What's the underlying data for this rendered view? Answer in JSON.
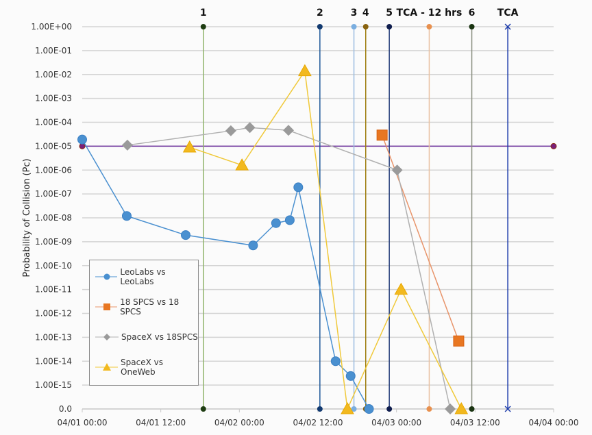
{
  "chart_data": {
    "type": "scatter",
    "title": "",
    "xlabel": "",
    "ylabel": "Probability of Collision (Pc)",
    "x_unit": "hours since 04/01 00:00",
    "xlim": [
      0,
      72
    ],
    "x_ticks": [
      {
        "t": 0,
        "label": "04/01 00:00"
      },
      {
        "t": 12,
        "label": "04/01 12:00"
      },
      {
        "t": 24,
        "label": "04/02 00:00"
      },
      {
        "t": 36,
        "label": "04/02 12:00"
      },
      {
        "t": 48,
        "label": "04/03 00:00"
      },
      {
        "t": 60,
        "label": "04/03 12:00"
      },
      {
        "t": 72,
        "label": "04/04 00:00"
      }
    ],
    "y_scale": "log",
    "ylim": [
      1e-16,
      1
    ],
    "y_ticks": [
      "0.0",
      "1.00E-15",
      "1.00E-14",
      "1.00E-13",
      "1.00E-12",
      "1.00E-11",
      "1.00E-10",
      "1.00E-09",
      "1.00E-08",
      "1.00E-07",
      "1.00E-06",
      "1.00E-05",
      "1.00E-04",
      "1.00E-03",
      "1.00E-02",
      "1.00E-01",
      "1.00E+00"
    ],
    "grid": true,
    "legend_position": "bottom-left",
    "threshold": {
      "value": 1e-05,
      "color": "#6a2c9a",
      "marker_color": "#7a1f7a"
    },
    "series": [
      {
        "name": "LeoLabs vs LeoLabs",
        "color": "#4a90d0",
        "marker": "circle",
        "points": [
          [
            0,
            1.9e-05
          ],
          [
            6.8,
            1.2e-08
          ],
          [
            15.8,
            1.9e-09
          ],
          [
            26.1,
            7e-10
          ],
          [
            29.6,
            6e-09
          ],
          [
            31.7,
            8e-09
          ],
          [
            33,
            1.9e-07
          ],
          [
            38.7,
            1e-14
          ],
          [
            41,
            2.4e-15
          ],
          [
            43.8,
            0
          ]
        ]
      },
      {
        "name": "18 SPCS vs 18 SPCS",
        "color": "#e87722",
        "line_color": "#e8946a",
        "marker": "square",
        "points": [
          [
            45.8,
            2.9e-05
          ],
          [
            57.5,
            7e-14
          ]
        ]
      },
      {
        "name": "SpaceX vs 18SPCS",
        "color": "#9a9a9a",
        "line_color": "#b0b0b0",
        "marker": "diamond",
        "points": [
          [
            6.9,
            1.1e-05
          ],
          [
            22.7,
            4.4e-05
          ],
          [
            25.6,
            6e-05
          ],
          [
            31.5,
            4.6e-05
          ],
          [
            48.1,
            1e-06
          ],
          [
            56.2,
            0
          ]
        ]
      },
      {
        "name": "SpaceX vs OneWeb",
        "color": "#f2b91f",
        "line_color": "#f0c93a",
        "marker": "triangle",
        "points": [
          [
            16.4,
            9e-06
          ],
          [
            24.4,
            1.6e-06
          ],
          [
            34,
            0.014
          ],
          [
            40.5,
            0
          ],
          [
            48.7,
            1e-11
          ],
          [
            57.9,
            0
          ]
        ]
      }
    ],
    "events": [
      {
        "label": "1",
        "t": 18.5,
        "color": "#8fb36a",
        "dot": "#1e3d12",
        "marker": "dot"
      },
      {
        "label": "2",
        "t": 36.3,
        "color": "#1f5a9a",
        "dot": "#123a70",
        "marker": "dot"
      },
      {
        "label": "3",
        "t": 41.5,
        "color": "#9cbde0",
        "dot": "#7aaee0",
        "marker": "dot"
      },
      {
        "label": "4",
        "t": 43.3,
        "color": "#a08012",
        "dot": "#8a6410",
        "marker": "dot"
      },
      {
        "label": "5",
        "t": 46.9,
        "color": "#243e7a",
        "dot": "#101e4e",
        "marker": "dot"
      },
      {
        "label": "TCA - 12 hrs",
        "t": 53,
        "color": "#e8c0a0",
        "dot": "#e8904e",
        "marker": "dot"
      },
      {
        "label": "6",
        "t": 59.5,
        "color": "#8a8f80",
        "dot": "#1a3412",
        "marker": "dot"
      },
      {
        "label": "TCA",
        "t": 65,
        "color": "#1a3aaa",
        "dot": "#1a3aaa",
        "marker": "x"
      }
    ]
  }
}
